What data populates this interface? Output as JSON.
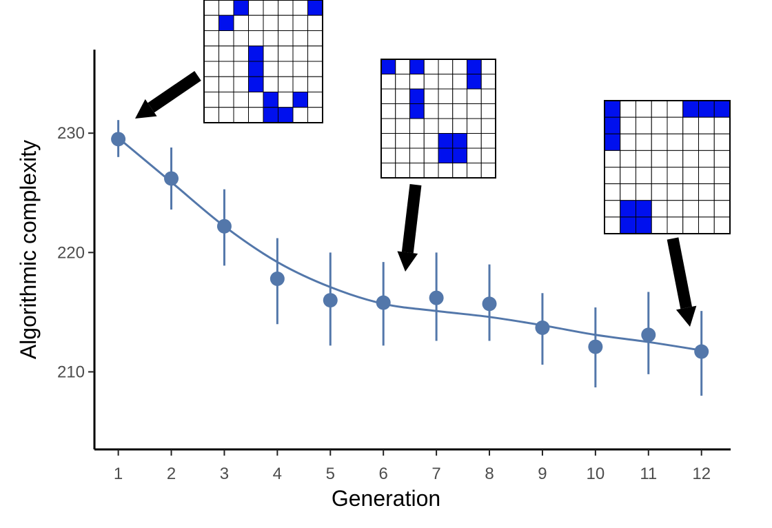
{
  "chart_data": {
    "type": "line",
    "title": "",
    "xlabel": "Generation",
    "ylabel": "Algorithmic complexity",
    "x": [
      1,
      2,
      3,
      4,
      5,
      6,
      7,
      8,
      9,
      10,
      11,
      12
    ],
    "x_ticks": [
      "1",
      "2",
      "3",
      "4",
      "5",
      "6",
      "7",
      "8",
      "9",
      "10",
      "11",
      "12"
    ],
    "y_ticks": [
      "210",
      "220",
      "230"
    ],
    "xlim": [
      0.55,
      12.55
    ],
    "ylim": [
      203.5,
      237
    ],
    "grid": false,
    "legend": "none",
    "series": [
      {
        "mean": [
          229.5,
          226.2,
          222.2,
          217.8,
          216.0,
          215.8,
          216.2,
          215.7,
          213.7,
          212.1,
          213.1,
          211.7
        ],
        "error_low": [
          228.0,
          223.6,
          218.9,
          214.0,
          212.2,
          212.2,
          212.6,
          212.6,
          210.6,
          208.7,
          209.8,
          208.0
        ],
        "error_high": [
          231.1,
          228.8,
          225.3,
          221.2,
          220.0,
          219.2,
          220.0,
          219.0,
          216.6,
          215.4,
          216.7,
          215.1
        ]
      }
    ],
    "trend": {
      "x": [
        1,
        2,
        3,
        4,
        5,
        6,
        7,
        8,
        9,
        10,
        11,
        12
      ],
      "y": [
        229.6,
        225.9,
        222.2,
        219.2,
        217.1,
        215.7,
        215.1,
        214.6,
        213.9,
        213.1,
        212.5,
        211.8
      ]
    },
    "colors": {
      "series": "#5377aa",
      "filled_cell": "#0010ee",
      "empty_cell": "#ffffff",
      "arrow": "#000000",
      "axis": "#000000"
    },
    "insets": [
      {
        "points_to_generation": 1,
        "rows": 8,
        "cols": 8,
        "filled": [
          [
            0,
            2
          ],
          [
            0,
            7
          ],
          [
            1,
            1
          ],
          [
            3,
            3
          ],
          [
            4,
            3
          ],
          [
            5,
            3
          ],
          [
            6,
            4
          ],
          [
            6,
            6
          ],
          [
            7,
            4
          ],
          [
            7,
            5
          ]
        ]
      },
      {
        "points_to_generation": 6,
        "rows": 8,
        "cols": 8,
        "filled": [
          [
            0,
            0
          ],
          [
            0,
            2
          ],
          [
            0,
            6
          ],
          [
            1,
            6
          ],
          [
            2,
            2
          ],
          [
            3,
            2
          ],
          [
            5,
            4
          ],
          [
            5,
            5
          ],
          [
            6,
            4
          ],
          [
            6,
            5
          ]
        ]
      },
      {
        "points_to_generation": 12,
        "rows": 8,
        "cols": 8,
        "filled": [
          [
            0,
            0
          ],
          [
            0,
            5
          ],
          [
            0,
            6
          ],
          [
            0,
            7
          ],
          [
            1,
            0
          ],
          [
            2,
            0
          ],
          [
            6,
            1
          ],
          [
            6,
            2
          ],
          [
            7,
            1
          ],
          [
            7,
            2
          ]
        ]
      }
    ]
  }
}
